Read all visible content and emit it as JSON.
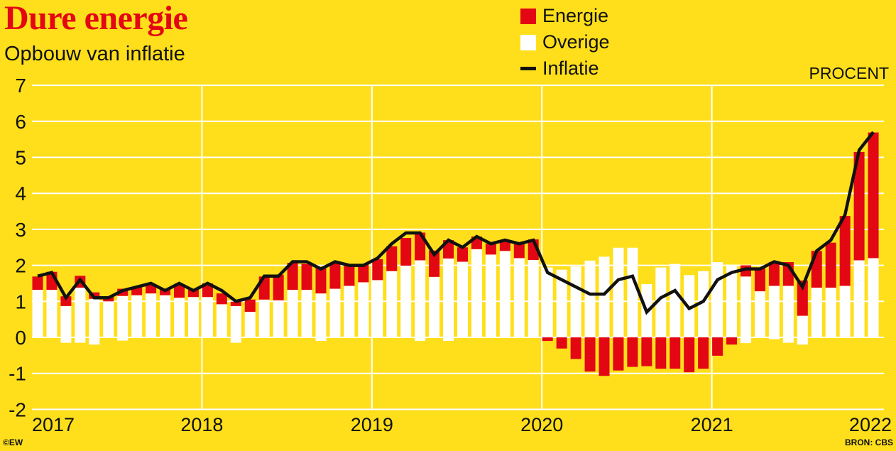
{
  "title": "Dure energie",
  "subtitle": "Opbouw van inflatie",
  "unit_label": "PROCENT",
  "credit": "©EW",
  "source": "BRON: CBS",
  "legend": [
    {
      "label": "Energie",
      "color": "#E30613",
      "kind": "bar"
    },
    {
      "label": "Overige",
      "color": "#FFFFFF",
      "kind": "bar"
    },
    {
      "label": "Inflatie",
      "color": "#111111",
      "kind": "line"
    }
  ],
  "colors": {
    "background": "#FFDF1B",
    "grid": "#FFFFFF"
  },
  "chart_data": {
    "type": "bar",
    "stacked": true,
    "title": "Dure energie",
    "subtitle": "Opbouw van inflatie",
    "ylabel": "PROCENT",
    "ylim": [
      -2,
      7
    ],
    "yticks": [
      "7",
      "6",
      "5",
      "4",
      "3",
      "2",
      "1",
      "0",
      "-1",
      "-2"
    ],
    "xtick_labels": [
      "2017",
      "2018",
      "2019",
      "2020",
      "2021",
      "2022"
    ],
    "x_start": "2017-01",
    "x_end": "2021-12",
    "frequency": "monthly",
    "grid": true,
    "legend_position": "top-center",
    "series": [
      {
        "name": "Energie",
        "type": "bar",
        "color": "#E30613",
        "values": [
          0.37,
          0.5,
          0.27,
          0.33,
          0.18,
          0.14,
          0.2,
          0.23,
          0.26,
          0.15,
          0.38,
          0.2,
          0.38,
          0.3,
          0.12,
          0.34,
          0.64,
          0.71,
          0.75,
          0.72,
          0.71,
          0.72,
          0.57,
          0.51,
          0.58,
          0.69,
          0.77,
          0.77,
          0.73,
          0.51,
          0.4,
          0.35,
          0.3,
          0.28,
          0.4,
          0.57,
          -0.1,
          -0.31,
          -0.6,
          -0.95,
          -1.07,
          -0.92,
          -0.82,
          -0.8,
          -0.87,
          -0.87,
          -0.97,
          -0.87,
          -0.51,
          -0.2,
          0.31,
          0.66,
          0.66,
          0.66,
          0.98,
          1.02,
          1.25,
          1.94,
          3.01,
          3.49
        ]
      },
      {
        "name": "Overige",
        "type": "bar",
        "color": "#FFFFFF",
        "values": [
          1.32,
          1.32,
          0.87,
          1.38,
          1.07,
          1.0,
          1.15,
          1.17,
          1.22,
          1.17,
          1.1,
          1.12,
          1.12,
          0.92,
          0.87,
          0.71,
          1.05,
          1.03,
          1.32,
          1.32,
          1.22,
          1.35,
          1.43,
          1.53,
          1.59,
          1.84,
          1.99,
          2.14,
          1.68,
          2.19,
          2.1,
          2.45,
          2.3,
          2.4,
          2.2,
          2.15,
          1.94,
          1.88,
          1.97,
          2.13,
          2.24,
          2.49,
          2.49,
          1.48,
          1.94,
          2.04,
          1.73,
          1.84,
          2.09,
          2.02,
          1.69,
          1.28,
          1.43,
          1.43,
          0.6,
          1.38,
          1.38,
          1.43,
          2.14,
          2.2
        ],
        "negative_part": [
          0,
          0,
          -0.15,
          -0.15,
          -0.2,
          0,
          -0.09,
          0,
          0,
          0,
          0,
          0,
          0,
          0,
          -0.15,
          0,
          0,
          0,
          0,
          0,
          -0.1,
          0,
          0,
          0,
          0,
          0,
          0,
          -0.1,
          0,
          -0.1,
          0,
          0,
          0,
          0,
          0,
          0,
          0,
          0,
          0,
          0,
          0,
          0,
          0,
          -0.16,
          -0.2,
          0,
          0,
          0,
          0,
          0,
          -0.16,
          0,
          -0.05,
          -0.15,
          -0.2,
          0,
          0,
          0,
          0,
          0
        ]
      },
      {
        "name": "Inflatie",
        "type": "line",
        "color": "#111111",
        "values": [
          1.7,
          1.8,
          1.1,
          1.6,
          1.1,
          1.1,
          1.3,
          1.4,
          1.5,
          1.3,
          1.5,
          1.3,
          1.5,
          1.3,
          1.0,
          1.1,
          1.7,
          1.7,
          2.1,
          2.1,
          1.9,
          2.1,
          2.0,
          2.0,
          2.2,
          2.6,
          2.9,
          2.9,
          2.3,
          2.7,
          2.5,
          2.8,
          2.6,
          2.7,
          2.6,
          2.7,
          1.8,
          1.6,
          1.4,
          1.2,
          1.2,
          1.6,
          1.7,
          0.7,
          1.1,
          1.3,
          0.8,
          1.0,
          1.6,
          1.8,
          1.9,
          1.9,
          2.1,
          2.0,
          1.4,
          2.4,
          2.7,
          3.4,
          5.2,
          5.7
        ]
      }
    ]
  }
}
